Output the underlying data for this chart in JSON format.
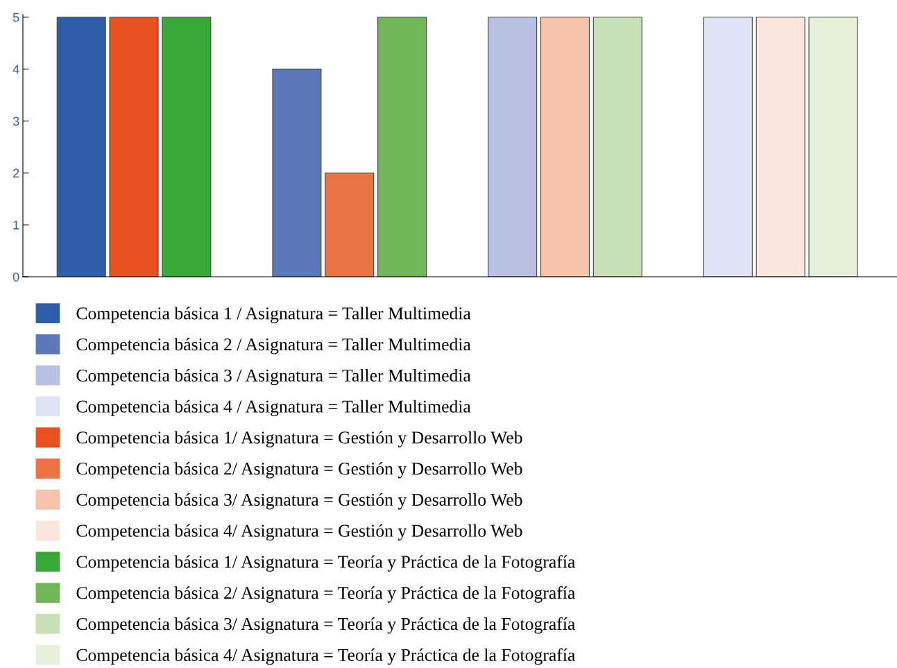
{
  "chart_data": {
    "type": "bar",
    "categories": [
      null,
      null,
      null,
      null
    ],
    "ylim": [
      0,
      5.05
    ],
    "yticks": [
      0,
      1,
      2,
      3,
      4,
      5
    ],
    "grid": false,
    "legend": "bottom",
    "series": [
      {
        "name": "Competencia básica 1 / Asignatura = Taller Multimedia",
        "color": "#2f5ea8",
        "values": [
          5,
          null,
          null,
          null
        ]
      },
      {
        "name": "Competencia básica 2 / Asignatura = Taller Multimedia",
        "color": "#5b78bb",
        "values": [
          null,
          4,
          null,
          null
        ]
      },
      {
        "name": "Competencia básica 3 / Asignatura = Taller Multimedia",
        "color": "#b8c1e2",
        "values": [
          null,
          null,
          5,
          null
        ]
      },
      {
        "name": "Competencia básica 4 / Asignatura = Taller Multimedia",
        "color": "#dfe3f3",
        "values": [
          null,
          null,
          null,
          5
        ]
      },
      {
        "name": "Competencia básica 1/ Asignatura = Gestión y Desarrollo Web",
        "color": "#e8501e",
        "values": [
          5,
          null,
          null,
          null
        ]
      },
      {
        "name": "Competencia básica 2/ Asignatura = Gestión y Desarrollo Web",
        "color": "#ec7444",
        "values": [
          null,
          2,
          null,
          null
        ]
      },
      {
        "name": "Competencia básica 3/ Asignatura = Gestión y Desarrollo Web",
        "color": "#f6c4aa",
        "values": [
          null,
          null,
          5,
          null
        ]
      },
      {
        "name": "Competencia básica 4/ Asignatura = Gestión y Desarrollo Web",
        "color": "#fae6dc",
        "values": [
          null,
          null,
          null,
          5
        ]
      },
      {
        "name": "Competencia básica 1/ Asignatura = Teoría y Práctica de la Fotografía",
        "color": "#38a838",
        "values": [
          5,
          null,
          null,
          null
        ]
      },
      {
        "name": "Competencia básica 2/ Asignatura = Teoría y Práctica de la Fotografía",
        "color": "#72b85a",
        "values": [
          null,
          5,
          null,
          null
        ]
      },
      {
        "name": "Competencia básica 3/ Asignatura = Teoría y Práctica de la Fotografía",
        "color": "#c7e0b5",
        "values": [
          null,
          null,
          5,
          null
        ]
      },
      {
        "name": "Competencia básica 4/ Asignatura = Teoría y Práctica de la Fotografía",
        "color": "#e6f1dc",
        "values": [
          null,
          null,
          null,
          5
        ]
      }
    ]
  }
}
